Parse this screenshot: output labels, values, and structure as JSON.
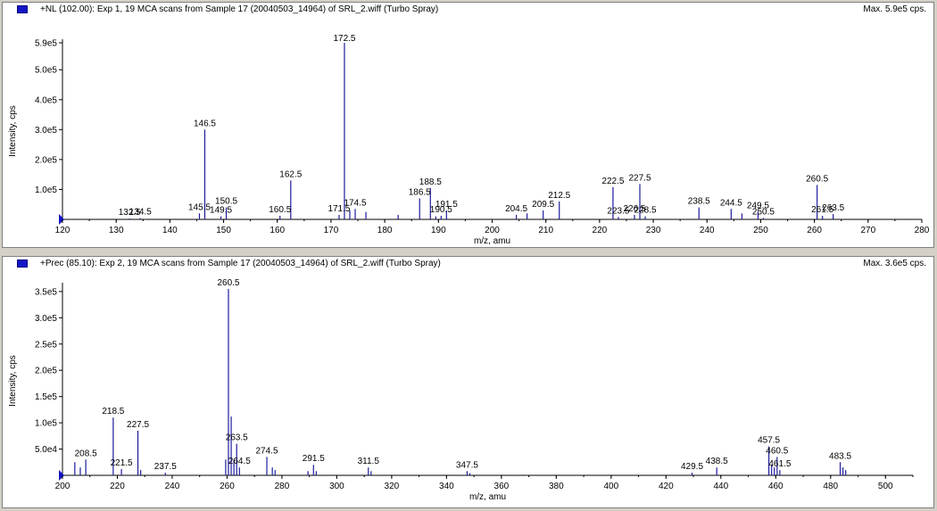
{
  "chart_data": [
    {
      "type": "bar",
      "title": "+NL (102.00): Exp 1, 19 MCA scans from Sample 17 (20040503_14964) of SRL_2.wiff (Turbo Spray)",
      "max_label": "Max. 5.9e5 cps.",
      "xlabel": "m/z, amu",
      "ylabel": "Intensity, cps",
      "xlim": [
        120,
        280
      ],
      "ylim": [
        0,
        590000
      ],
      "xticks": [
        120,
        130,
        140,
        150,
        160,
        170,
        180,
        190,
        200,
        210,
        220,
        230,
        240,
        250,
        260,
        270,
        280
      ],
      "yticks": [
        {
          "value": 100000,
          "label": "1.0e5"
        },
        {
          "value": 200000,
          "label": "2.0e5"
        },
        {
          "value": 300000,
          "label": "3.0e5"
        },
        {
          "value": 400000,
          "label": "4.0e5"
        },
        {
          "value": 500000,
          "label": "5.0e5"
        },
        {
          "value": 590000,
          "label": "5.9e5"
        }
      ],
      "color": "#1c1c9c",
      "peaks": [
        {
          "x": 132.5,
          "y": 3000
        },
        {
          "x": 134.5,
          "y": 4000
        },
        {
          "x": 145.5,
          "y": 20000
        },
        {
          "x": 146.5,
          "y": 300000
        },
        {
          "x": 149.5,
          "y": 10000
        },
        {
          "x": 150.5,
          "y": 40000
        },
        {
          "x": 160.5,
          "y": 12000
        },
        {
          "x": 162.5,
          "y": 130000
        },
        {
          "x": 171.5,
          "y": 15000
        },
        {
          "x": 172.5,
          "y": 590000
        },
        {
          "x": 173.5,
          "y": 30000
        },
        {
          "x": 174.5,
          "y": 35000
        },
        {
          "x": 176.5,
          "y": 25000
        },
        {
          "x": 182.5,
          "y": 15000
        },
        {
          "x": 186.5,
          "y": 70000
        },
        {
          "x": 188.5,
          "y": 105000
        },
        {
          "x": 189.5,
          "y": 10000
        },
        {
          "x": 190.5,
          "y": 12000
        },
        {
          "x": 191.5,
          "y": 30000
        },
        {
          "x": 204.5,
          "y": 15000
        },
        {
          "x": 206.5,
          "y": 20000
        },
        {
          "x": 209.5,
          "y": 30000
        },
        {
          "x": 212.5,
          "y": 60000
        },
        {
          "x": 222.5,
          "y": 108000
        },
        {
          "x": 223.5,
          "y": 8000
        },
        {
          "x": 226.5,
          "y": 15000
        },
        {
          "x": 227.5,
          "y": 118000
        },
        {
          "x": 228.5,
          "y": 10000
        },
        {
          "x": 238.5,
          "y": 40000
        },
        {
          "x": 244.5,
          "y": 35000
        },
        {
          "x": 246.5,
          "y": 20000
        },
        {
          "x": 249.5,
          "y": 25000
        },
        {
          "x": 250.5,
          "y": 5000
        },
        {
          "x": 260.5,
          "y": 115000
        },
        {
          "x": 261.5,
          "y": 12000
        },
        {
          "x": 263.5,
          "y": 18000
        }
      ],
      "labels": [
        {
          "text": "132.5",
          "x": 132.5,
          "y": 3000
        },
        {
          "text": "134.5",
          "x": 134.5,
          "y": 4000
        },
        {
          "text": "145.5",
          "x": 145.5,
          "y": 20000
        },
        {
          "text": "146.5",
          "x": 146.5,
          "y": 300000
        },
        {
          "text": "149.5",
          "x": 149.5,
          "y": 10000
        },
        {
          "text": "150.5",
          "x": 150.5,
          "y": 40000
        },
        {
          "text": "160.5",
          "x": 160.5,
          "y": 12000
        },
        {
          "text": "162.5",
          "x": 162.5,
          "y": 130000
        },
        {
          "text": "171.5",
          "x": 171.5,
          "y": 15000
        },
        {
          "text": "172.5",
          "x": 172.5,
          "y": 590000
        },
        {
          "text": "174.5",
          "x": 174.5,
          "y": 35000
        },
        {
          "text": "186.5",
          "x": 186.5,
          "y": 70000
        },
        {
          "text": "188.5",
          "x": 188.5,
          "y": 105000
        },
        {
          "text": "190.5",
          "x": 190.5,
          "y": 12000
        },
        {
          "text": "191.5",
          "x": 191.5,
          "y": 30000
        },
        {
          "text": "204.5",
          "x": 204.5,
          "y": 15000
        },
        {
          "text": "209.5",
          "x": 209.5,
          "y": 30000
        },
        {
          "text": "212.5",
          "x": 212.5,
          "y": 60000
        },
        {
          "text": "222.5",
          "x": 222.5,
          "y": 108000
        },
        {
          "text": "223.5",
          "x": 223.5,
          "y": 8000
        },
        {
          "text": "226.5",
          "x": 226.5,
          "y": 15000
        },
        {
          "text": "227.5",
          "x": 227.5,
          "y": 118000
        },
        {
          "text": "228.5",
          "x": 228.5,
          "y": 10000
        },
        {
          "text": "238.5",
          "x": 238.5,
          "y": 40000
        },
        {
          "text": "244.5",
          "x": 244.5,
          "y": 35000
        },
        {
          "text": "249.5",
          "x": 249.5,
          "y": 25000
        },
        {
          "text": "250.5",
          "x": 250.5,
          "y": 5000
        },
        {
          "text": "260.5",
          "x": 260.5,
          "y": 115000
        },
        {
          "text": "261.5",
          "x": 261.5,
          "y": 12000
        },
        {
          "text": "263.5",
          "x": 263.5,
          "y": 18000
        }
      ]
    },
    {
      "type": "bar",
      "title": "+Prec (85.10): Exp 2, 19 MCA scans from Sample 17 (20040503_14964) of SRL_2.wiff (Turbo Spray)",
      "max_label": "Max. 3.6e5 cps.",
      "xlabel": "m/z, amu",
      "ylabel": "Intensity, cps",
      "xlim": [
        200,
        510
      ],
      "ylim": [
        0,
        360000
      ],
      "xticks": [
        200,
        220,
        240,
        260,
        280,
        300,
        320,
        340,
        360,
        380,
        400,
        420,
        440,
        460,
        480,
        500
      ],
      "yticks": [
        {
          "value": 50000,
          "label": "5.0e4"
        },
        {
          "value": 100000,
          "label": "1.0e5"
        },
        {
          "value": 150000,
          "label": "1.5e5"
        },
        {
          "value": 200000,
          "label": "2.0e5"
        },
        {
          "value": 250000,
          "label": "2.5e5"
        },
        {
          "value": 300000,
          "label": "3.0e5"
        },
        {
          "value": 350000,
          "label": "3.5e5"
        }
      ],
      "color": "#1c1c9c",
      "peaks": [
        {
          "x": 204.5,
          "y": 25000
        },
        {
          "x": 206.5,
          "y": 15000
        },
        {
          "x": 208.5,
          "y": 30000
        },
        {
          "x": 218.5,
          "y": 110000
        },
        {
          "x": 221.5,
          "y": 12000
        },
        {
          "x": 227.5,
          "y": 85000
        },
        {
          "x": 228.5,
          "y": 10000
        },
        {
          "x": 237.5,
          "y": 5000
        },
        {
          "x": 259.5,
          "y": 30000
        },
        {
          "x": 260.5,
          "y": 355000
        },
        {
          "x": 261.5,
          "y": 112000
        },
        {
          "x": 262.5,
          "y": 30000
        },
        {
          "x": 263.5,
          "y": 60000
        },
        {
          "x": 264.5,
          "y": 15000
        },
        {
          "x": 274.5,
          "y": 35000
        },
        {
          "x": 276.5,
          "y": 15000
        },
        {
          "x": 277.5,
          "y": 10000
        },
        {
          "x": 289.5,
          "y": 8000
        },
        {
          "x": 291.5,
          "y": 20000
        },
        {
          "x": 292.5,
          "y": 8000
        },
        {
          "x": 311.5,
          "y": 15000
        },
        {
          "x": 312.5,
          "y": 8000
        },
        {
          "x": 347.5,
          "y": 8000
        },
        {
          "x": 348.5,
          "y": 4000
        },
        {
          "x": 429.5,
          "y": 5000
        },
        {
          "x": 438.5,
          "y": 15000
        },
        {
          "x": 457.5,
          "y": 55000
        },
        {
          "x": 458.5,
          "y": 20000
        },
        {
          "x": 459.5,
          "y": 15000
        },
        {
          "x": 460.5,
          "y": 35000
        },
        {
          "x": 461.5,
          "y": 10000
        },
        {
          "x": 483.5,
          "y": 25000
        },
        {
          "x": 484.5,
          "y": 15000
        },
        {
          "x": 485.5,
          "y": 10000
        }
      ],
      "labels": [
        {
          "text": "208.5",
          "x": 208.5,
          "y": 30000
        },
        {
          "text": "218.5",
          "x": 218.5,
          "y": 110000
        },
        {
          "text": "221.5",
          "x": 221.5,
          "y": 12000
        },
        {
          "text": "227.5",
          "x": 227.5,
          "y": 85000
        },
        {
          "text": "237.5",
          "x": 237.5,
          "y": 5000
        },
        {
          "text": "260.5",
          "x": 260.5,
          "y": 355000
        },
        {
          "text": "263.5",
          "x": 263.5,
          "y": 60000
        },
        {
          "text": "264.5",
          "x": 264.5,
          "y": 15000
        },
        {
          "text": "274.5",
          "x": 274.5,
          "y": 35000
        },
        {
          "text": "291.5",
          "x": 291.5,
          "y": 20000
        },
        {
          "text": "311.5",
          "x": 311.5,
          "y": 15000
        },
        {
          "text": "347.5",
          "x": 347.5,
          "y": 8000
        },
        {
          "text": "429.5",
          "x": 429.5,
          "y": 5000
        },
        {
          "text": "438.5",
          "x": 438.5,
          "y": 15000
        },
        {
          "text": "457.5",
          "x": 457.5,
          "y": 55000
        },
        {
          "text": "460.5",
          "x": 460.5,
          "y": 35000
        },
        {
          "text": "461.5",
          "x": 461.5,
          "y": 10000
        },
        {
          "text": "483.5",
          "x": 483.5,
          "y": 25000
        }
      ]
    }
  ]
}
